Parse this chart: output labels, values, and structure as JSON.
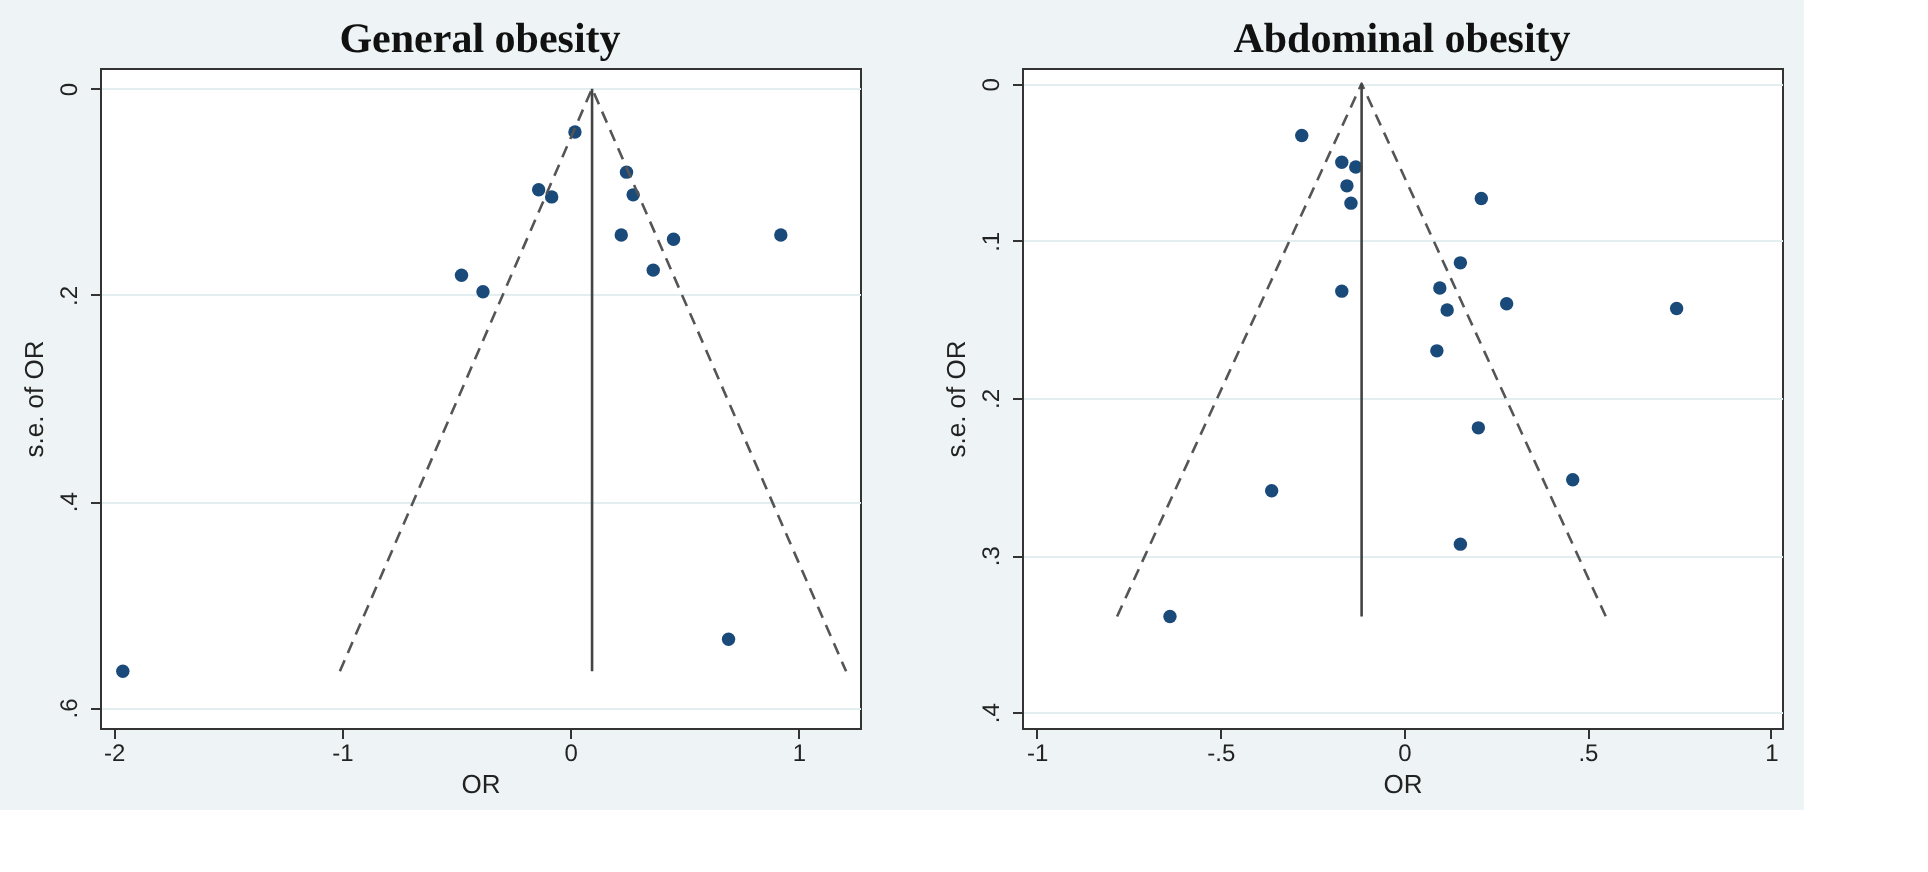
{
  "chart_data": [
    {
      "type": "scatter",
      "title": "General obesity",
      "xlabel": "OR",
      "ylabel": "s.e. of OR",
      "xlim": [
        -2.06,
        1.27
      ],
      "ylim": [
        0.62,
        -0.02
      ],
      "xticks": [
        -2,
        -1,
        0,
        1
      ],
      "yticks": [
        0,
        {
          "value": 0.2,
          "label": ".2"
        },
        {
          "value": 0.4,
          "label": ".4"
        },
        {
          "value": 0.6,
          "label": ".6"
        }
      ],
      "grid": "y",
      "series": [
        {
          "marker": "circle",
          "color": "#1a4a7a",
          "x": [
            -1.96,
            -0.476,
            -0.382,
            -0.138,
            -0.081,
            0.021,
            0.247,
            0.276,
            0.224,
            0.453,
            0.364,
            0.923,
            0.694
          ],
          "values": [
            0.565,
            0.181,
            0.197,
            0.098,
            0.105,
            0.042,
            0.081,
            0.103,
            0.142,
            0.146,
            0.176,
            0.142,
            0.534
          ]
        },
        {
          "type": "line",
          "line_style": "dashed",
          "color": "#555555",
          "x": [
            -1.009,
            0.096,
            1.209
          ],
          "values": [
            0.565,
            0,
            0.565
          ]
        },
        {
          "type": "line",
          "line_style": "solid",
          "color": "#444444",
          "x": [
            0.096,
            0.096
          ],
          "values": [
            0,
            0.565
          ]
        }
      ]
    },
    {
      "type": "scatter",
      "title": "Abdominal obesity",
      "xlabel": "OR",
      "ylabel": "s.e. of OR",
      "xlim": [
        -1.04,
        1.03
      ],
      "ylim": [
        0.41,
        -0.01
      ],
      "xticks": [
        -1,
        {
          "value": -0.5,
          "label": "-.5"
        },
        0,
        {
          "value": 0.5,
          "label": ".5"
        },
        1
      ],
      "yticks": [
        0,
        {
          "value": 0.1,
          "label": ".1"
        },
        {
          "value": 0.2,
          "label": ".2"
        },
        {
          "value": 0.3,
          "label": ".3"
        },
        {
          "value": 0.4,
          "label": ".4"
        }
      ],
      "grid": "y",
      "series": [
        {
          "marker": "circle",
          "color": "#1a4a7a",
          "x": [
            -0.278,
            -0.169,
            -0.131,
            -0.155,
            -0.144,
            0.211,
            0.154,
            0.098,
            -0.169,
            0.118,
            0.28,
            0.743,
            0.09,
            0.203,
            0.46,
            -0.36,
            0.154,
            -0.637
          ],
          "values": [
            0.033,
            0.05,
            0.053,
            0.065,
            0.076,
            0.073,
            0.114,
            0.13,
            0.132,
            0.144,
            0.14,
            0.143,
            0.17,
            0.219,
            0.252,
            0.259,
            0.293,
            0.339
          ]
        },
        {
          "type": "line",
          "line_style": "dashed",
          "color": "#555555",
          "x": [
            -0.781,
            -0.115,
            0.55
          ],
          "values": [
            0.339,
            0,
            0.339
          ]
        },
        {
          "type": "line",
          "line_style": "solid",
          "color": "#444444",
          "x": [
            -0.115,
            -0.115
          ],
          "values": [
            0,
            0.339
          ]
        }
      ]
    }
  ]
}
